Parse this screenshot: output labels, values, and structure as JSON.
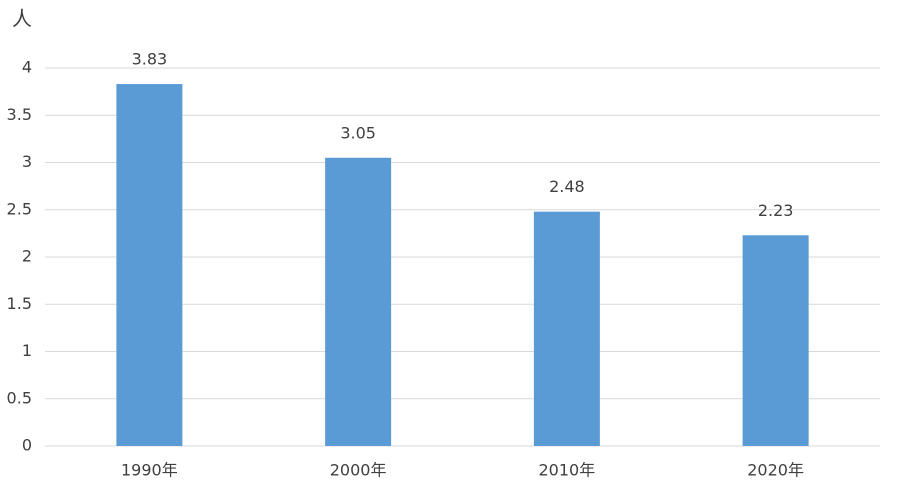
{
  "chart_data": {
    "type": "bar",
    "y_label": "人",
    "categories": [
      "1990年",
      "2000年",
      "2010年",
      "2020年"
    ],
    "values": [
      3.83,
      3.05,
      2.48,
      2.23
    ],
    "color": "#5b9bd5",
    "ylim": [
      0,
      4
    ],
    "yticks": [
      0,
      0.5,
      1,
      1.5,
      2,
      2.5,
      3,
      3.5,
      4
    ],
    "grid": true
  }
}
